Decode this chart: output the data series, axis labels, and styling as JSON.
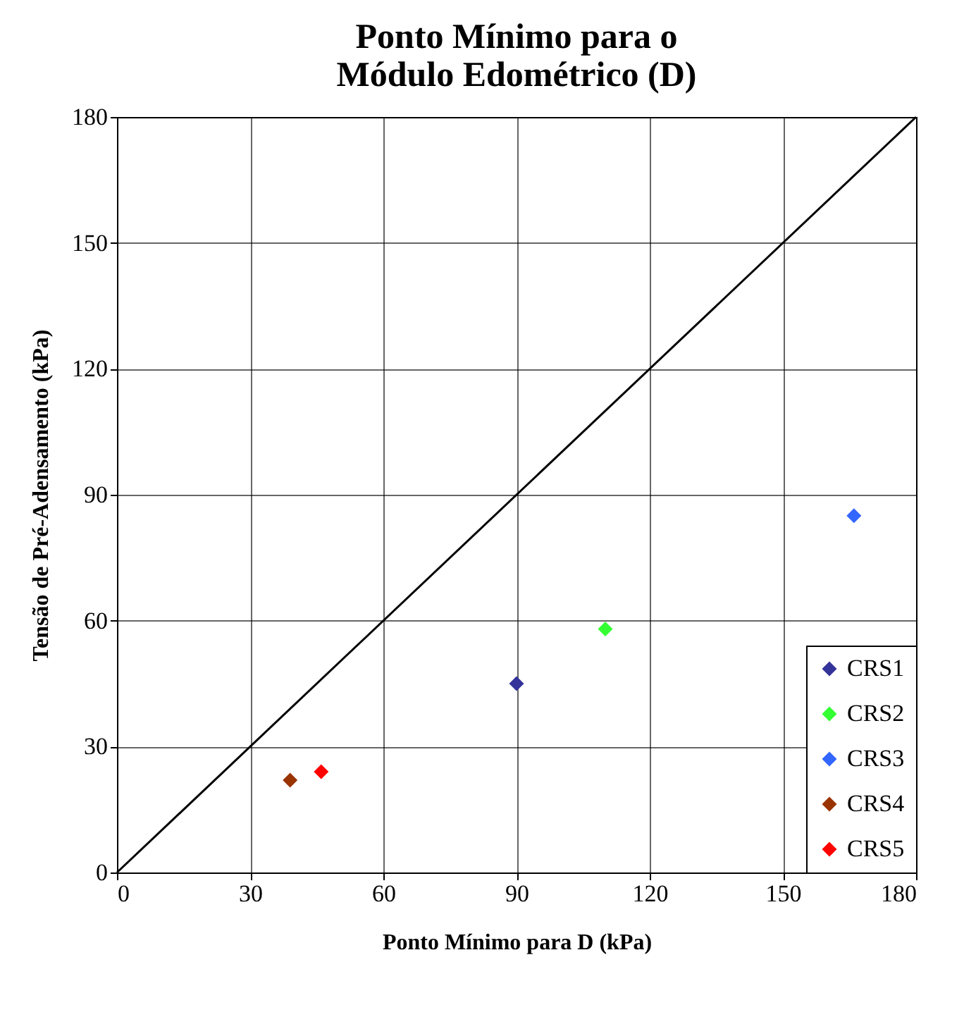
{
  "chart_data": {
    "type": "scatter",
    "title": "Ponto Mínimo para o Módulo Edométrico (D)",
    "xlabel": "Ponto Mínimo para D (kPa)",
    "ylabel": "Tensão de Pré-Adensamento (kPa)",
    "xlim": [
      0,
      180
    ],
    "xticks": [
      0,
      30,
      60,
      90,
      120,
      150,
      180
    ],
    "ylim": [
      0,
      180
    ],
    "yticks": [
      0,
      30,
      60,
      90,
      120,
      150,
      180
    ],
    "grid": true,
    "legend": "bottom right",
    "marker": "diamond",
    "series": [
      {
        "type": "line",
        "color": "#000000",
        "marker": "none",
        "x": [
          0,
          180
        ],
        "values": [
          0,
          180
        ]
      },
      {
        "name": "CRS1",
        "color": "#333399",
        "x": [
          90
        ],
        "values": [
          45
        ]
      },
      {
        "name": "CRS2",
        "color": "#33ff33",
        "x": [
          110
        ],
        "values": [
          58
        ]
      },
      {
        "name": "CRS3",
        "color": "#3366ff",
        "x": [
          166
        ],
        "values": [
          85
        ]
      },
      {
        "name": "CRS4",
        "color": "#993300",
        "x": [
          39
        ],
        "values": [
          22
        ]
      },
      {
        "name": "CRS5",
        "color": "#ff0000",
        "x": [
          46
        ],
        "values": [
          24
        ]
      }
    ]
  }
}
